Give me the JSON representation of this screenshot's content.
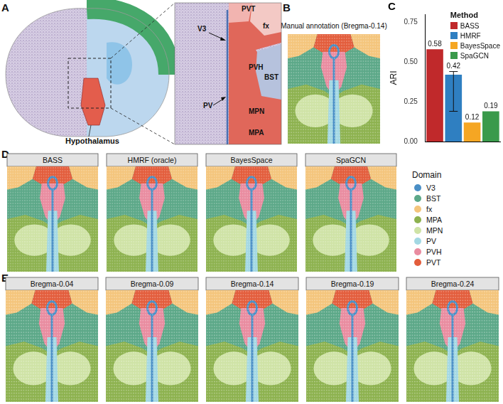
{
  "figure": {
    "panel_labels": [
      "A",
      "B",
      "C",
      "D",
      "E"
    ],
    "panel_a": {
      "region_label": "Hypothalamus",
      "inset_labels": [
        "PVT",
        "fx",
        "V3",
        "PVH",
        "BST",
        "PV",
        "MPN",
        "MPA"
      ]
    },
    "panel_b": {
      "title": "Manual annotation (Bregma-0.14)"
    },
    "panel_d": {
      "titles": [
        "BASS",
        "HMRF (oracle)",
        "BayesSpace",
        "SpaGCN"
      ]
    },
    "panel_e": {
      "titles": [
        "Bregma-0.04",
        "Bregma-0.09",
        "Bregma-0.14",
        "Bregma-0.19",
        "Bregma-0.24"
      ]
    },
    "domain_legend": {
      "title": "Domain",
      "domains": [
        {
          "name": "V3",
          "color": "#4a8fc6"
        },
        {
          "name": "BST",
          "color": "#5ca888"
        },
        {
          "name": "fx",
          "color": "#f4c57c"
        },
        {
          "name": "MPA",
          "color": "#8db24f"
        },
        {
          "name": "MPN",
          "color": "#cfe3a6"
        },
        {
          "name": "PV",
          "color": "#a3d8e3"
        },
        {
          "name": "PVH",
          "color": "#e98ca0"
        },
        {
          "name": "PVT",
          "color": "#e35d3c"
        }
      ]
    }
  },
  "chart_data": {
    "type": "bar",
    "categories": [
      "BASS",
      "HMRF",
      "BayesSpace",
      "SpaGCN"
    ],
    "values": [
      0.58,
      0.42,
      0.12,
      0.19
    ],
    "colors": [
      "#c0292b",
      "#2f7fc1",
      "#f5a623",
      "#3a9a4b"
    ],
    "error_low": [
      null,
      0.19,
      null,
      null
    ],
    "error_high": [
      null,
      0.44,
      null,
      null
    ],
    "y_label": "ARI",
    "ylim": [
      0,
      0.8
    ],
    "yticks": [
      {
        "value": 0,
        "label": "0.00"
      },
      {
        "value": 0.25,
        "label": "0.25"
      },
      {
        "value": 0.5,
        "label": "0.50"
      },
      {
        "value": 0.75,
        "label": "0.75"
      }
    ],
    "grid": false,
    "legend": "top-right",
    "legend_title": "Method",
    "data_labels": true,
    "tick_labels": "y"
  }
}
